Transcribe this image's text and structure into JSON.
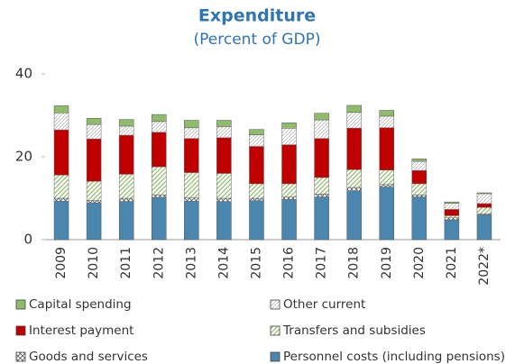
{
  "chart_data": {
    "type": "stacked_bar",
    "title": "Expenditure",
    "subtitle": "(Percent of GDP)",
    "categories": [
      "2009",
      "2010",
      "2011",
      "2012",
      "2013",
      "2014",
      "2015",
      "2016",
      "2017",
      "2018",
      "2019",
      "2020",
      "2021",
      "2022*"
    ],
    "series": [
      {
        "name": "Personnel costs (including pensions)",
        "color": "#4a86ae",
        "pattern": null,
        "values": [
          9.3,
          8.9,
          9.2,
          10.2,
          9.3,
          9.2,
          9.4,
          9.7,
          10.3,
          11.8,
          12.7,
          10.3,
          4.8,
          6.0
        ]
      },
      {
        "name": "Goods and services",
        "color": "#555555",
        "pattern": "crosshatch",
        "values": [
          0.7,
          0.6,
          0.8,
          0.6,
          0.8,
          0.8,
          0.6,
          0.6,
          0.7,
          0.8,
          0.6,
          0.5,
          0.5,
          0.2
        ]
      },
      {
        "name": "Transfers and subsidies",
        "color": "#8fbc6a",
        "pattern": "diag",
        "values": [
          5.6,
          4.6,
          5.8,
          6.8,
          6.1,
          6.0,
          3.5,
          3.2,
          4.0,
          4.3,
          3.5,
          2.7,
          0.5,
          1.6
        ]
      },
      {
        "name": "Interest payment",
        "color": "#c00000",
        "pattern": null,
        "values": [
          10.9,
          10.2,
          9.4,
          8.3,
          8.2,
          8.6,
          9.0,
          9.4,
          9.4,
          10.0,
          10.2,
          3.2,
          1.5,
          0.9
        ]
      },
      {
        "name": "Other current",
        "color": "#555555",
        "pattern": "dots",
        "values": [
          4.1,
          3.5,
          2.2,
          2.6,
          2.6,
          2.7,
          2.8,
          4.0,
          4.5,
          3.8,
          2.8,
          2.2,
          1.5,
          2.4
        ]
      },
      {
        "name": "Capital spending",
        "color": "#8fbc6a",
        "pattern": null,
        "values": [
          1.7,
          1.5,
          1.6,
          1.7,
          1.8,
          1.5,
          1.3,
          1.3,
          1.6,
          1.7,
          1.4,
          0.6,
          0.3,
          0.2
        ]
      }
    ],
    "legend_order": [
      5,
      4,
      3,
      2,
      1,
      0
    ],
    "ylim": [
      0,
      40
    ],
    "yticks": [
      0,
      20,
      40
    ],
    "grid": false
  }
}
